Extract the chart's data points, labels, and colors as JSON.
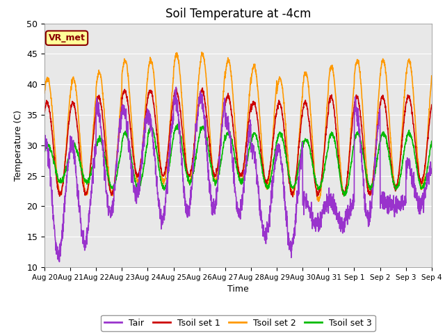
{
  "title": "Soil Temperature at -4cm",
  "xlabel": "Time",
  "ylabel": "Temperature (C)",
  "ylim": [
    10,
    50
  ],
  "annotation_text": "VR_met",
  "annotation_color": "#8B0000",
  "annotation_bg": "#FFFF99",
  "background_color": "#E8E8E8",
  "grid_color": "white",
  "xtick_labels": [
    "Aug 20",
    "Aug 21",
    "Aug 22",
    "Aug 23",
    "Aug 24",
    "Aug 25",
    "Aug 26",
    "Aug 27",
    "Aug 28",
    "Aug 29",
    "Aug 30",
    "Aug 31",
    "Sep 1",
    "Sep 2",
    "Sep 3",
    "Sep 4"
  ],
  "series": {
    "Tair": {
      "color": "#9933CC",
      "lw": 1.2
    },
    "Tsoil set 1": {
      "color": "#CC0000",
      "lw": 1.2
    },
    "Tsoil set 2": {
      "color": "#FF9900",
      "lw": 1.2
    },
    "Tsoil set 3": {
      "color": "#00BB00",
      "lw": 1.2
    }
  },
  "n_days": 15,
  "pts_per_day": 144
}
